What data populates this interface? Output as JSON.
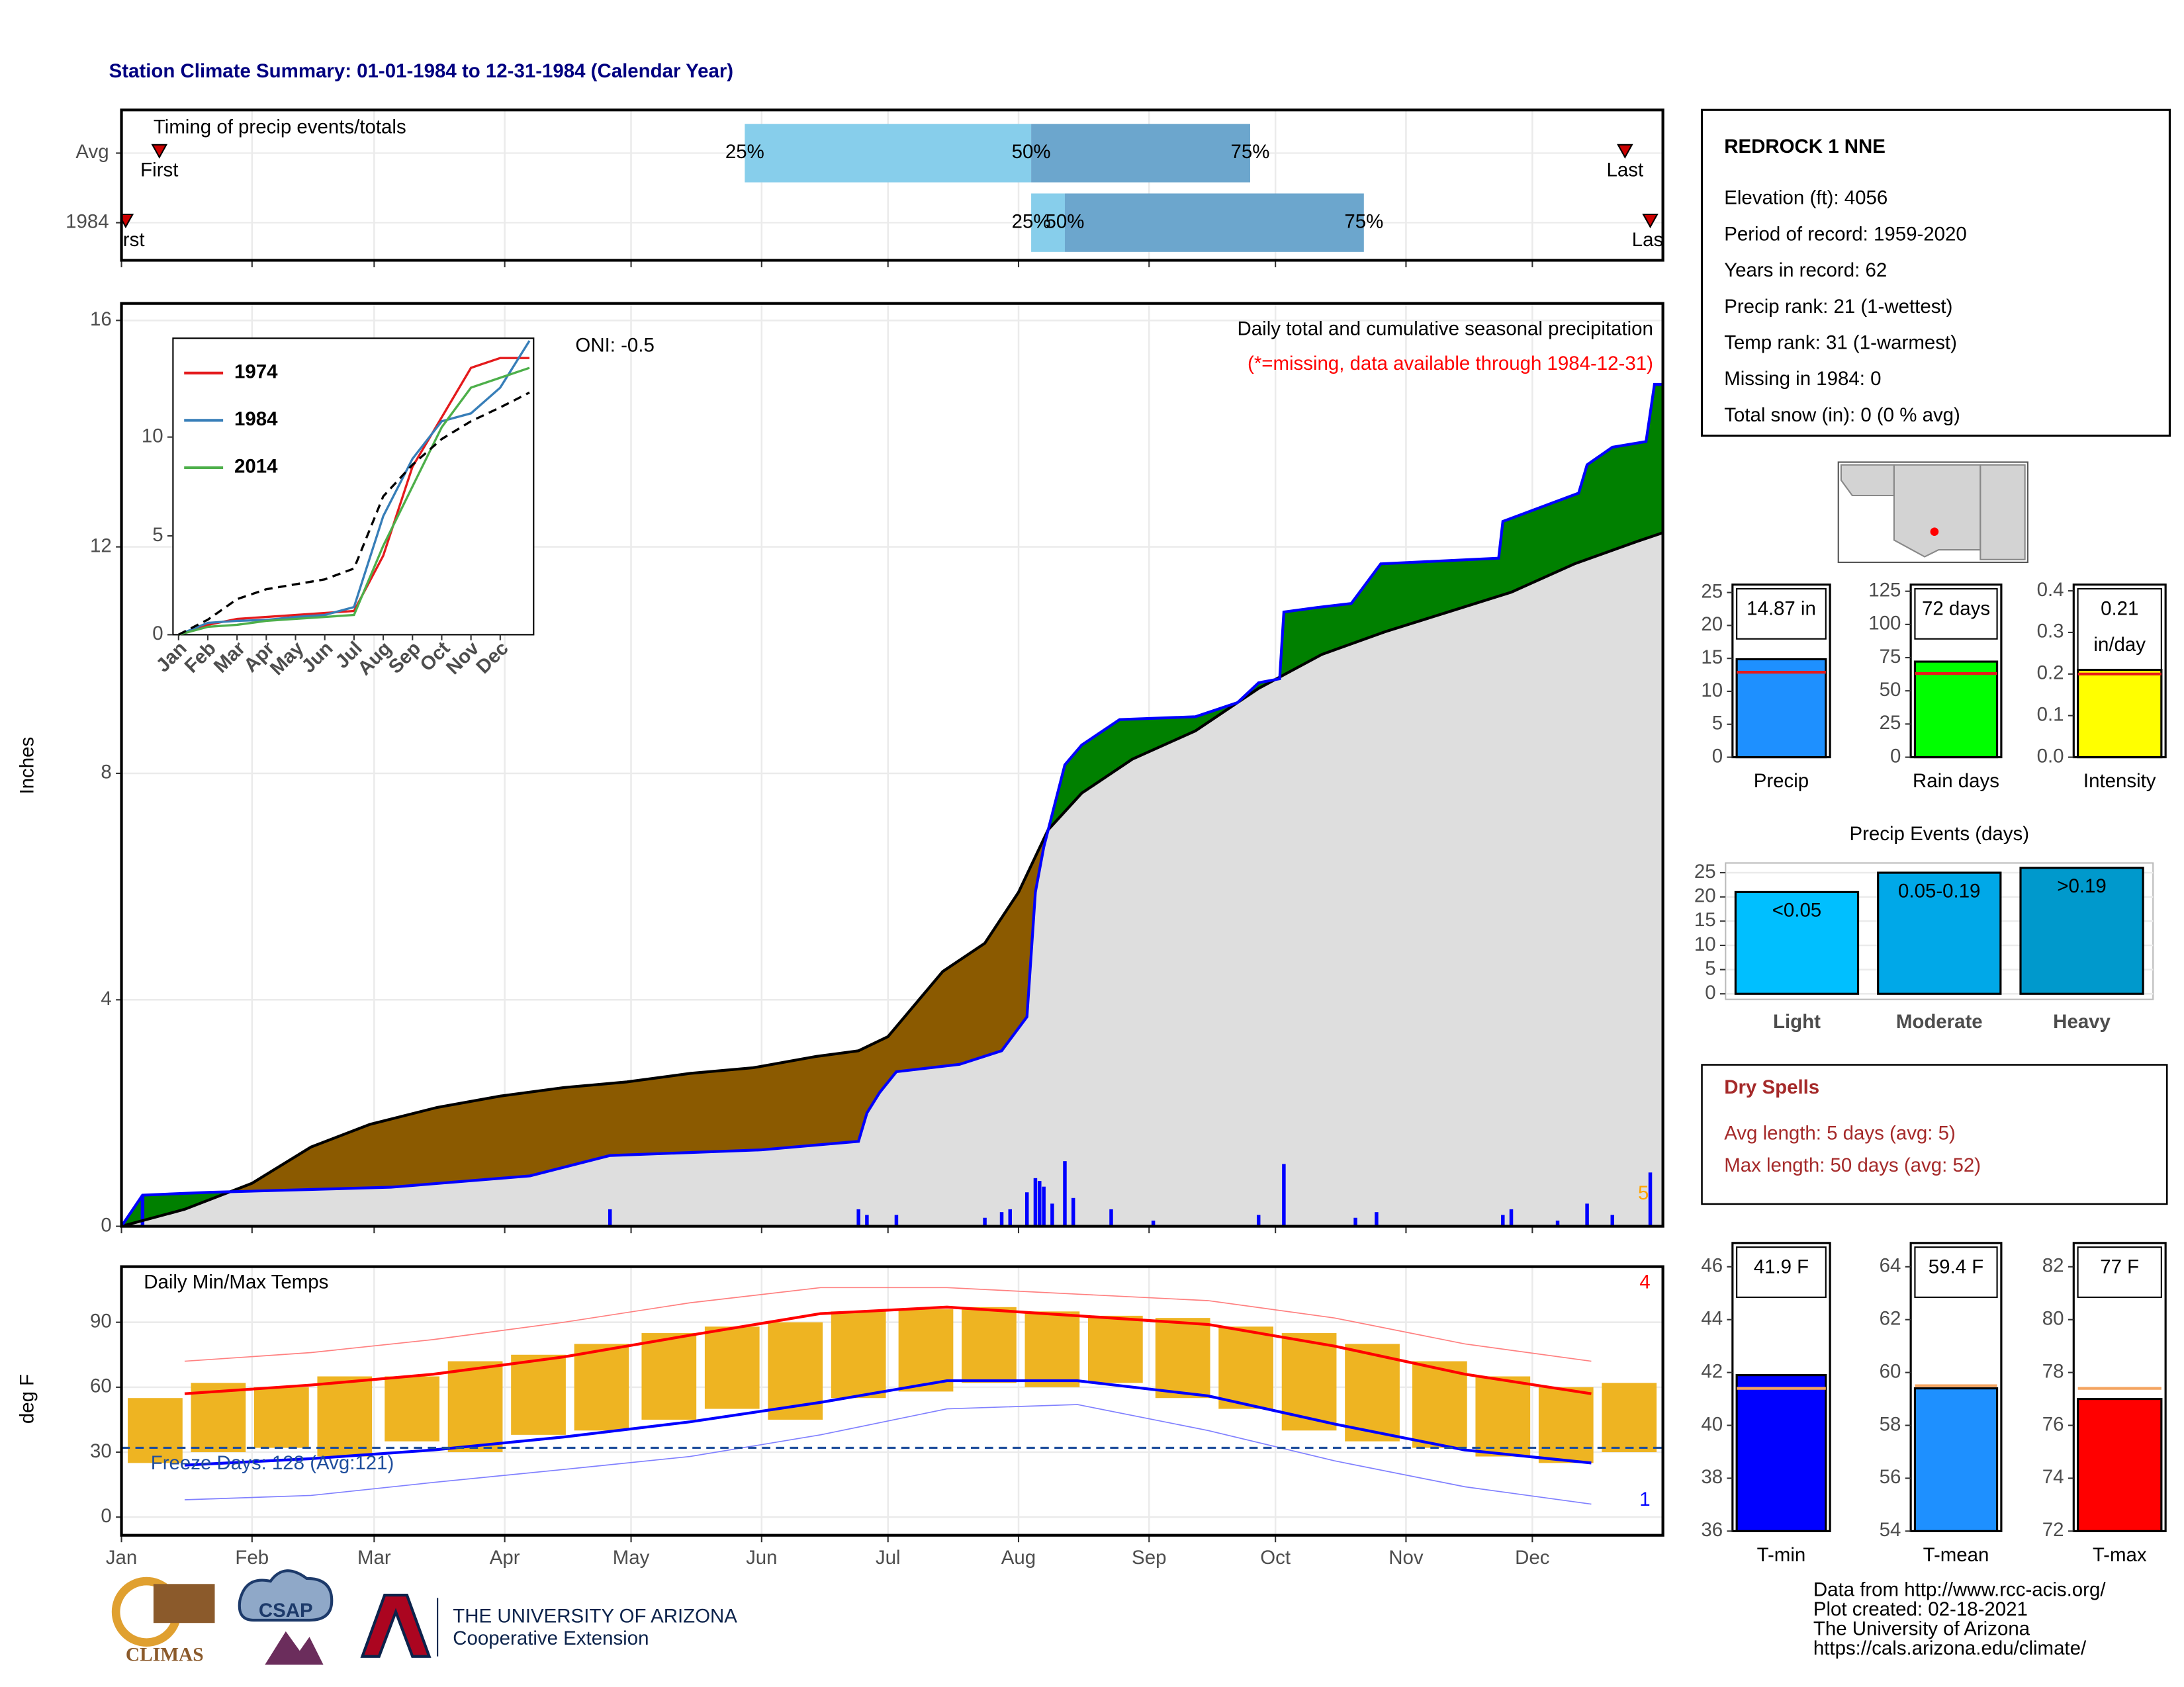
{
  "title": "Station Climate Summary: 01-01-1984 to 12-31-1984 (Calendar Year)",
  "station": {
    "name": "REDROCK 1 NNE",
    "lines": [
      "Elevation (ft): 4056",
      "Period of record: 1959-2020",
      "Years in record: 62",
      "Precip rank: 21 (1-wettest)",
      "Temp rank: 31 (1-warmest)",
      "Missing in 1984: 0",
      "Total snow (in): 0 (0 % avg)"
    ]
  },
  "dry_spells": {
    "title": "Dry Spells",
    "lines": [
      "Avg length: 5 days (avg: 5)",
      "Max length: 50 days (avg: 52)"
    ],
    "color": "#a52a2a"
  },
  "footer": {
    "logos": [
      "CLIMAS",
      "CSAP",
      "THE UNIVERSITY OF ARIZONA",
      "Cooperative Extension"
    ],
    "credits": [
      "Data from http://www.rcc-acis.org/",
      "Plot created: 02-18-2021",
      "The University of Arizona",
      "https://cals.arizona.edu/climate/"
    ]
  },
  "chart_data": [
    {
      "type": "timing",
      "title": "Timing of precip events/totals",
      "xlim": [
        0,
        366
      ],
      "categories": [
        "Avg",
        "1984"
      ],
      "rows": [
        {
          "first": 9,
          "p25": 148,
          "p50": 216,
          "p75": 268,
          "last": 357
        },
        {
          "first": 1,
          "p25": 216,
          "p50": 224,
          "p75": 295,
          "last": 363
        }
      ],
      "labels": {
        "first": "First",
        "p25": "25%",
        "p50": "50%",
        "p75": "75%",
        "last": "Last"
      },
      "colors": {
        "low": "#87ceeb",
        "high": "#6ca6cd",
        "marker": "#cc0000"
      }
    },
    {
      "type": "precip",
      "ylabel": "Inches",
      "xlim": [
        0,
        366
      ],
      "ylim": [
        0,
        16.3
      ],
      "yticks": [
        0,
        4,
        8,
        12,
        16
      ],
      "grid": true,
      "annotations": [
        {
          "text": "ONI: -0.5",
          "color": "#000000"
        },
        {
          "text": "Daily total and cumulative seasonal precipitation",
          "color": "#000000"
        },
        {
          "text": "(*=missing, data available through 1984-12-31)",
          "color": "#ff0000"
        },
        {
          "text": "5",
          "color": "#ffa500"
        }
      ],
      "series": [
        {
          "color": "#000000",
          "x": [
            0,
            15,
            31,
            45,
            59,
            75,
            90,
            105,
            120,
            135,
            150,
            165,
            175,
            182,
            195,
            205,
            213,
            220,
            228,
            240,
            255,
            270,
            285,
            300,
            315,
            330,
            345,
            360,
            366
          ],
          "values": [
            0,
            0.3,
            0.76,
            1.4,
            1.8,
            2.1,
            2.3,
            2.45,
            2.55,
            2.7,
            2.8,
            3.0,
            3.1,
            3.35,
            4.5,
            5.0,
            5.9,
            7.0,
            7.65,
            8.25,
            8.75,
            9.5,
            10.1,
            10.5,
            10.85,
            11.2,
            11.7,
            12.1,
            12.25
          ]
        },
        {
          "color": "#0000ff",
          "x": [
            0,
            5,
            21,
            64,
            97,
            116,
            152,
            175,
            177,
            180,
            184,
            199,
            209,
            215,
            217,
            219,
            224,
            228,
            237,
            255,
            265,
            270,
            275,
            276,
            284,
            292,
            299,
            327,
            328,
            346,
            348,
            354,
            362,
            364,
            366
          ],
          "values": [
            0,
            0.55,
            0.6,
            0.69,
            0.89,
            1.25,
            1.35,
            1.5,
            2.0,
            2.36,
            2.73,
            2.86,
            3.1,
            3.7,
            5.9,
            6.7,
            8.15,
            8.5,
            8.95,
            9.0,
            9.25,
            9.6,
            9.67,
            10.85,
            10.93,
            11.0,
            11.7,
            11.8,
            12.45,
            12.95,
            13.45,
            13.76,
            13.86,
            14.87,
            14.87
          ]
        }
      ],
      "fill_above": "#008000",
      "fill_below": "#8b5a00",
      "fill_base": "#dedede",
      "daily": {
        "color": "#0000ff",
        "x": [
          5,
          116,
          175,
          177,
          184,
          205,
          209,
          211,
          215,
          217,
          218,
          219,
          221,
          224,
          226,
          235,
          245,
          270,
          276,
          293,
          298,
          328,
          330,
          341,
          348,
          354,
          363
        ],
        "values": [
          0.55,
          0.3,
          0.3,
          0.2,
          0.2,
          0.15,
          0.25,
          0.3,
          0.6,
          0.85,
          0.8,
          0.7,
          0.4,
          1.15,
          0.5,
          0.3,
          0.1,
          0.2,
          1.1,
          0.15,
          0.25,
          0.2,
          0.3,
          0.1,
          0.4,
          0.2,
          0.95
        ]
      }
    },
    {
      "type": "inset",
      "categories": [
        "Jan",
        "Feb",
        "Mar",
        "Apr",
        "May",
        "Jun",
        "Jul",
        "Aug",
        "Sep",
        "Oct",
        "Nov",
        "Dec",
        null
      ],
      "ylim": [
        0,
        15
      ],
      "yticks": [
        0,
        5,
        10
      ],
      "series": [
        {
          "name": "1974",
          "color": "#e41a1c",
          "values": [
            0,
            0.5,
            0.8,
            0.9,
            1.0,
            1.1,
            1.2,
            4.0,
            8.5,
            11.0,
            13.5,
            14.0,
            14.0
          ]
        },
        {
          "name": "1984",
          "color": "#377eb8",
          "values": [
            0,
            0.6,
            0.7,
            0.75,
            0.9,
            1.0,
            1.4,
            6.0,
            8.9,
            10.8,
            11.2,
            12.5,
            14.87
          ]
        },
        {
          "name": "2014",
          "color": "#4daf4a",
          "values": [
            0,
            0.4,
            0.5,
            0.7,
            0.8,
            0.9,
            1.0,
            4.5,
            7.5,
            10.5,
            12.5,
            13.0,
            13.5
          ]
        },
        {
          "color": "#000000",
          "dash": true,
          "values": [
            0,
            0.76,
            1.8,
            2.3,
            2.55,
            2.8,
            3.35,
            7.0,
            8.6,
            9.9,
            10.8,
            11.5,
            12.25
          ]
        }
      ]
    },
    {
      "type": "summary_bar",
      "label": "Precip",
      "value": 14.87,
      "value_label": "14.87 in",
      "avg": 12.9,
      "ylim": [
        0,
        26.2
      ],
      "yticks": [
        0,
        5,
        10,
        15,
        20,
        25
      ],
      "color": "#1e90ff",
      "avg_color": "#e41a1c"
    },
    {
      "type": "summary_bar",
      "label": "Rain days",
      "value": 72,
      "value_label": "72 days",
      "avg": 63,
      "ylim": [
        0,
        130
      ],
      "yticks": [
        0,
        25,
        50,
        75,
        100,
        125
      ],
      "color": "#00ff00",
      "avg_color": "#e41a1c"
    },
    {
      "type": "summary_bar",
      "label": "Intensity",
      "value": 0.21,
      "value_label": "0.21",
      "unit_label": "in/day",
      "avg": 0.2,
      "ylim": [
        0,
        0.415
      ],
      "yticks": [
        {
          "value": 0,
          "label": "0.0"
        },
        0.1,
        0.2,
        0.3,
        0.4
      ],
      "color": "#ffff00",
      "avg_color": "#e41a1c"
    },
    {
      "type": "events",
      "title": "Precip Events (days)",
      "categories": [
        "Light",
        "Moderate",
        "Heavy"
      ],
      "values": [
        21,
        25,
        26
      ],
      "value_labels": [
        "<0.05",
        "0.05-0.19",
        ">0.19"
      ],
      "colors": [
        "#00bfff",
        "#00a8e8",
        "#0099cc"
      ],
      "ylim": [
        0,
        27
      ],
      "yticks": [
        0,
        5,
        10,
        15,
        20,
        25
      ]
    },
    {
      "type": "summary_bar",
      "label": "T-min",
      "value": 41.9,
      "value_label": "41.9 F",
      "avg": 41.4,
      "ylim": [
        36,
        46.9
      ],
      "yticks": [
        36,
        38,
        40,
        42,
        44,
        46
      ],
      "color": "#0000ff",
      "avg_color": "#f4a460"
    },
    {
      "type": "summary_bar",
      "label": "T-mean",
      "value": 59.4,
      "value_label": "59.4 F",
      "avg": 59.5,
      "ylim": [
        54,
        64.9
      ],
      "yticks": [
        54,
        56,
        58,
        60,
        62,
        64
      ],
      "color": "#1e90ff",
      "avg_color": "#f4a460"
    },
    {
      "type": "summary_bar",
      "label": "T-max",
      "value": 77,
      "value_label": "77 F",
      "avg": 77.4,
      "ylim": [
        72,
        82.9
      ],
      "yticks": [
        72,
        74,
        76,
        78,
        80,
        82
      ],
      "color": "#ff0000",
      "avg_color": "#f4a460"
    },
    {
      "type": "temps",
      "title": "Daily Min/Max Temps",
      "ylabel": "deg F",
      "xlim": [
        0,
        366
      ],
      "ylim": [
        -8.4,
        115.7
      ],
      "yticks": [
        0,
        30,
        60,
        90
      ],
      "grid": true,
      "xticks": [
        {
          "value": 0,
          "label": "Jan"
        },
        {
          "value": 31,
          "label": "Feb"
        },
        {
          "value": 60,
          "label": "Mar"
        },
        {
          "value": 91,
          "label": "Apr"
        },
        {
          "value": 121,
          "label": "May"
        },
        {
          "value": 152,
          "label": "Jun"
        },
        {
          "value": 182,
          "label": "Jul"
        },
        {
          "value": 213,
          "label": "Aug"
        },
        {
          "value": 244,
          "label": "Sep"
        },
        {
          "value": 274,
          "label": "Oct"
        },
        {
          "value": 305,
          "label": "Nov"
        },
        {
          "value": 335,
          "label": "Dec"
        }
      ],
      "freeze": 32,
      "freeze_color": "#1f4e9c",
      "annotations": [
        {
          "text": "Freeze Days: 128 (Avg:121)",
          "color": "#1f4e9c"
        },
        {
          "text": "4",
          "color": "#ff0000"
        },
        {
          "text": "1",
          "color": "#0000ff"
        }
      ],
      "daily": {
        "color": "#eeb422",
        "x": [
          8,
          23,
          38,
          53,
          69,
          84,
          99,
          114,
          130,
          145,
          160,
          175,
          191,
          206,
          221,
          236,
          252,
          267,
          282,
          297,
          313,
          328,
          343,
          358
        ],
        "low": [
          25,
          30,
          32,
          28,
          35,
          30,
          38,
          40,
          45,
          50,
          45,
          55,
          58,
          62,
          60,
          62,
          55,
          50,
          40,
          35,
          32,
          28,
          25,
          30
        ],
        "high": [
          55,
          62,
          60,
          65,
          65,
          72,
          75,
          80,
          85,
          88,
          90,
          95,
          96,
          97,
          95,
          93,
          92,
          88,
          85,
          80,
          72,
          65,
          60,
          62
        ]
      },
      "x": [
        15,
        45,
        74,
        105,
        135,
        166,
        196,
        227,
        258,
        288,
        319,
        349
      ],
      "series": [
        {
          "color": "#ff8080",
          "width": 0.8,
          "values": [
            72,
            76,
            82,
            90,
            99,
            106,
            106,
            103,
            100,
            92,
            80,
            72
          ]
        },
        {
          "color": "#ff0000",
          "width": 2,
          "values": [
            57,
            61,
            66,
            74,
            84,
            94,
            97,
            93,
            89,
            79,
            66,
            57
          ]
        },
        {
          "color": "#0000ff",
          "width": 2,
          "values": [
            24,
            27,
            31,
            37,
            44,
            53,
            63,
            63,
            56,
            43,
            31,
            25
          ]
        },
        {
          "color": "#8080ff",
          "width": 0.8,
          "values": [
            8,
            10,
            16,
            22,
            28,
            38,
            50,
            52,
            40,
            26,
            14,
            6
          ]
        }
      ]
    }
  ]
}
